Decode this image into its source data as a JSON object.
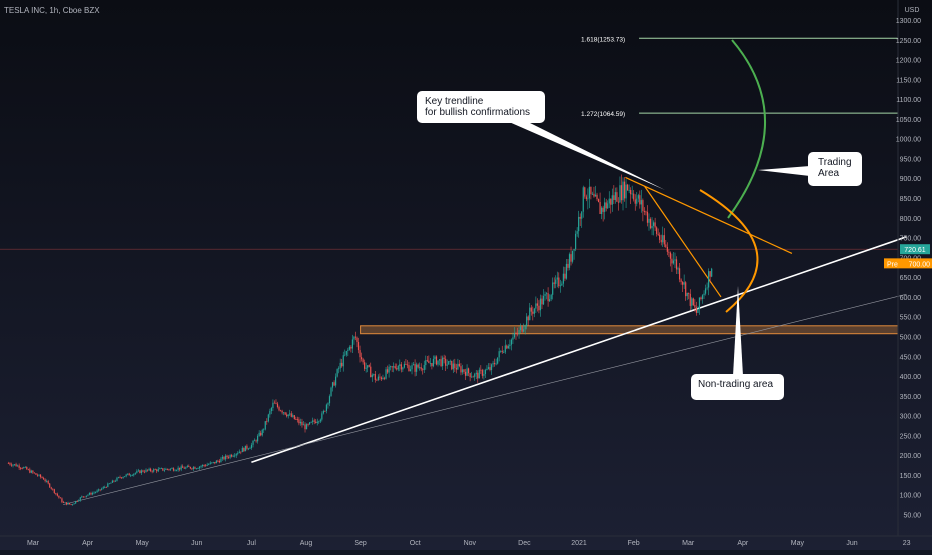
{
  "header": {
    "symbol": "TESLA INC, 1h, Cboe BZX"
  },
  "colors": {
    "background_top": "#0b0d14",
    "background_bottom": "#1b1f30",
    "candle_up": "#26a69a",
    "candle_down": "#ef5350",
    "trendline": "#ffffff",
    "fib_line": "#a5d6a7",
    "arc_green": "#4caf50",
    "orange": "#ff9800",
    "zone_fill": "#e08a3c",
    "price_label": "#26a69a"
  },
  "chart_data": {
    "type": "candlestick",
    "title": "TESLA INC, 1h, Cboe BZX",
    "currency": "USD",
    "ylim": [
      20,
      1360
    ],
    "y_ticks": [
      50,
      100,
      150,
      200,
      250,
      300,
      350,
      400,
      450,
      500,
      550,
      600,
      650,
      700,
      750,
      800,
      850,
      900,
      950,
      1000,
      1050,
      1100,
      1150,
      1200,
      1250,
      1300
    ],
    "x_ticks": [
      {
        "label": "Mar",
        "t": 0
      },
      {
        "label": "Apr",
        "t": 1
      },
      {
        "label": "May",
        "t": 2
      },
      {
        "label": "Jun",
        "t": 3
      },
      {
        "label": "Jul",
        "t": 4
      },
      {
        "label": "Aug",
        "t": 5
      },
      {
        "label": "Sep",
        "t": 6
      },
      {
        "label": "Oct",
        "t": 7
      },
      {
        "label": "Nov",
        "t": 8
      },
      {
        "label": "Dec",
        "t": 9
      },
      {
        "label": "2021",
        "t": 10
      },
      {
        "label": "Feb",
        "t": 11
      },
      {
        "label": "Mar",
        "t": 12
      },
      {
        "label": "Apr",
        "t": 13
      },
      {
        "label": "May",
        "t": 14
      },
      {
        "label": "Jun",
        "t": 15
      },
      {
        "label": "23",
        "t": 16
      }
    ],
    "x_range": [
      -0.1,
      16.0
    ],
    "price_path": [
      [
        -0.45,
        180
      ],
      [
        -0.2,
        170
      ],
      [
        0.2,
        140
      ],
      [
        0.55,
        80
      ],
      [
        0.7,
        75
      ],
      [
        0.9,
        95
      ],
      [
        1.2,
        110
      ],
      [
        1.6,
        145
      ],
      [
        2.0,
        160
      ],
      [
        2.5,
        165
      ],
      [
        3.0,
        170
      ],
      [
        3.3,
        180
      ],
      [
        3.7,
        205
      ],
      [
        4.0,
        225
      ],
      [
        4.2,
        260
      ],
      [
        4.4,
        330
      ],
      [
        4.7,
        300
      ],
      [
        5.0,
        270
      ],
      [
        5.3,
        300
      ],
      [
        5.6,
        420
      ],
      [
        5.9,
        500
      ],
      [
        6.05,
        430
      ],
      [
        6.3,
        390
      ],
      [
        6.7,
        430
      ],
      [
        7.0,
        420
      ],
      [
        7.4,
        440
      ],
      [
        7.8,
        420
      ],
      [
        8.1,
        400
      ],
      [
        8.4,
        420
      ],
      [
        8.6,
        470
      ],
      [
        8.9,
        510
      ],
      [
        9.1,
        560
      ],
      [
        9.4,
        600
      ],
      [
        9.7,
        650
      ],
      [
        9.85,
        700
      ],
      [
        10.0,
        800
      ],
      [
        10.1,
        870
      ],
      [
        10.4,
        820
      ],
      [
        10.7,
        860
      ],
      [
        10.9,
        880
      ],
      [
        11.1,
        840
      ],
      [
        11.35,
        780
      ],
      [
        11.6,
        720
      ],
      [
        11.75,
        690
      ],
      [
        11.9,
        640
      ],
      [
        12.0,
        600
      ],
      [
        12.15,
        560
      ],
      [
        12.3,
        620
      ],
      [
        12.45,
        690
      ]
    ],
    "current_price": 700,
    "price_labels": [
      {
        "label": "720.61",
        "value": 720.61
      },
      {
        "label": "Pre",
        "value": "700.00"
      }
    ],
    "fibonacci": [
      {
        "label": "1.618(1253.73)",
        "value": 1253.73,
        "from_t": 11.1,
        "to_t": 16.0
      },
      {
        "label": "1.272(1064.59)",
        "value": 1064.59,
        "from_t": 11.1,
        "to_t": 16.0
      }
    ],
    "trendlines": [
      {
        "name": "white_support",
        "from": [
          4.0,
          182
        ],
        "to": [
          16.0,
          752
        ],
        "color": "white"
      },
      {
        "name": "gray_support",
        "from": [
          0.55,
          75
        ],
        "to": [
          16.0,
          607
        ],
        "color": "gray"
      },
      {
        "name": "orange_upper",
        "from": [
          10.85,
          902
        ],
        "to": [
          13.9,
          710
        ],
        "color": "orange"
      },
      {
        "name": "orange_steep",
        "from": [
          11.2,
          880
        ],
        "to": [
          12.6,
          600
        ],
        "color": "orange"
      }
    ],
    "zone": {
      "from": 507,
      "to": 527,
      "from_t": 6.0,
      "to_t": 16.0
    },
    "annotations": [
      {
        "text": "Key trendline for bullish confirmations",
        "lines": [
          "Key trendline",
          "for bullish confirmations"
        ]
      },
      {
        "text": "Trading Area",
        "lines": [
          "Trading",
          "Area"
        ]
      },
      {
        "text": "Non-trading area",
        "lines": [
          "Non-trading area"
        ]
      }
    ]
  }
}
